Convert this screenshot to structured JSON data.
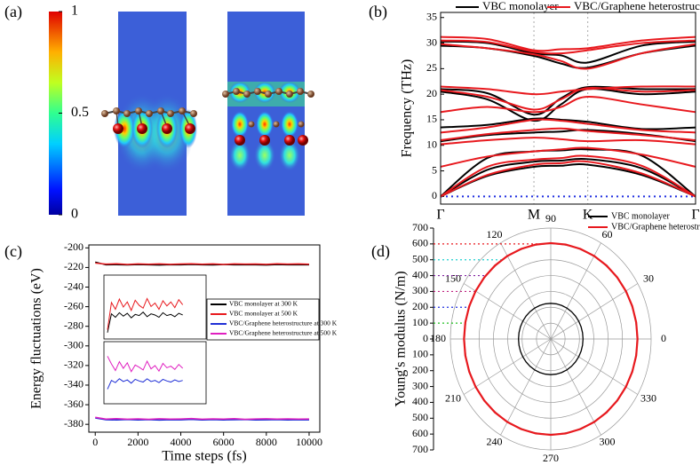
{
  "chart_data": [
    {
      "type": "colorbar",
      "label": "(a)",
      "clim": [
        0,
        1
      ],
      "cticks": [
        0,
        0.5,
        1
      ]
    },
    {
      "type": "bands",
      "label": "(b)",
      "ylabel": "Frequency (THz)",
      "xlim": [
        0,
        2.732
      ],
      "xticks": [
        {
          "value": 0,
          "label": "Γ"
        },
        {
          "value": 1,
          "label": "M"
        },
        {
          "value": 1.577,
          "label": "K"
        },
        {
          "value": 2.732,
          "label": "Γ"
        }
      ],
      "ylim": [
        -1.5,
        36
      ],
      "yticks": [
        0,
        5,
        10,
        15,
        20,
        25,
        30,
        35
      ],
      "x": [
        0,
        0.5,
        1,
        1.289,
        1.577,
        2.155,
        2.732
      ],
      "series": [
        {
          "name": "VBC monolayer",
          "color": "#000000",
          "bands": [
            [
              0,
              4,
              5.8,
              6,
              6.2,
              4.2,
              0
            ],
            [
              0,
              5.2,
              6.8,
              7,
              7.3,
              5.5,
              0
            ],
            [
              0,
              7.5,
              8.8,
              9,
              9.2,
              8,
              0
            ],
            [
              10.8,
              12,
              12.5,
              12.7,
              13,
              12.2,
              10.8
            ],
            [
              13.5,
              14,
              15.2,
              15,
              14.6,
              13.2,
              13.5
            ],
            [
              20.5,
              19,
              14.8,
              18,
              21,
              20,
              20.5
            ],
            [
              21,
              20.2,
              16,
              19.2,
              21.4,
              21,
              21
            ],
            [
              29.5,
              29,
              27.5,
              26,
              25.2,
              28,
              29.5
            ],
            [
              30.3,
              30,
              28,
              27.6,
              26.2,
              29.5,
              30.3
            ]
          ]
        },
        {
          "name": "VBC/Graphene heterostructure",
          "color": "#e8191e",
          "bands": [
            [
              0,
              4.2,
              6.2,
              6.5,
              6.8,
              4.5,
              0
            ],
            [
              0,
              5.8,
              7.2,
              7.5,
              7.9,
              6,
              0
            ],
            [
              5.8,
              7.8,
              8.8,
              9.2,
              9.5,
              8.2,
              5.8
            ],
            [
              10.2,
              11,
              11.5,
              11.2,
              10.8,
              11,
              10.2
            ],
            [
              11,
              12.2,
              13,
              13.3,
              12.8,
              12,
              11
            ],
            [
              12.5,
              13.5,
              15,
              14.8,
              14.2,
              13,
              12.5
            ],
            [
              16.5,
              17.5,
              16.5,
              17.5,
              19.5,
              18,
              16.5
            ],
            [
              20.8,
              19.5,
              17,
              19,
              21.2,
              20.5,
              20.8
            ],
            [
              21.5,
              21,
              20,
              20.5,
              21,
              21.5,
              21.5
            ],
            [
              29.8,
              29,
              27.8,
              26.5,
              25,
              28,
              29.8
            ],
            [
              30.5,
              30.2,
              28.3,
              28,
              28.6,
              30,
              30.5
            ],
            [
              31.2,
              30.8,
              28.6,
              28.8,
              29,
              30.5,
              31.2
            ]
          ]
        }
      ]
    },
    {
      "type": "line",
      "label": "(c)",
      "xlabel": "Time steps (fs)",
      "ylabel": "Energy fluctuations (eV)",
      "xlim": [
        -300,
        10500
      ],
      "xticks": [
        0,
        2000,
        4000,
        6000,
        8000,
        10000
      ],
      "ylim": [
        -388,
        -197
      ],
      "yticks": [
        -380,
        -360,
        -340,
        -320,
        -300,
        -280,
        -260,
        -240,
        -220,
        -200
      ],
      "x": [
        0,
        500,
        1000,
        1500,
        2000,
        2500,
        3000,
        3500,
        4000,
        4500,
        5000,
        5500,
        6000,
        6500,
        7000,
        7500,
        8000,
        8500,
        9000,
        9500,
        10000
      ],
      "series": [
        {
          "name": "VBC monolayer at 300 K",
          "color": "#000000",
          "values": [
            -214.5,
            -217.3,
            -217.1,
            -217.4,
            -217.0,
            -217.2,
            -217.5,
            -217.1,
            -217.3,
            -216.9,
            -217.2,
            -217.4,
            -217.0,
            -217.3,
            -217.1,
            -217.2,
            -217.5,
            -217.0,
            -217.3,
            -217.1,
            -217.2
          ]
        },
        {
          "name": "VBC monolayer at 500 K",
          "color": "#e8191e",
          "values": [
            -215.5,
            -216.6,
            -216.2,
            -216.9,
            -216.4,
            -216.7,
            -216.3,
            -216.8,
            -216.5,
            -216.2,
            -216.7,
            -216.4,
            -216.9,
            -216.3,
            -216.6,
            -216.5,
            -216.8,
            -216.2,
            -216.6,
            -216.4,
            -216.7
          ]
        },
        {
          "name": "VBC/Graphene heterostructure at 300 K",
          "color": "#1f2fd6",
          "values": [
            -373.5,
            -375.3,
            -375.6,
            -375.1,
            -375.5,
            -375.2,
            -375.7,
            -375.3,
            -375.4,
            -375.0,
            -375.6,
            -375.2,
            -375.5,
            -375.3,
            -375.1,
            -375.6,
            -375.4,
            -375.2,
            -375.5,
            -375.3,
            -375.4
          ]
        },
        {
          "name": "VBC/Graphene heterostructure at 500 K",
          "color": "#e020c0",
          "values": [
            -372.8,
            -374.6,
            -374.2,
            -374.8,
            -374.4,
            -374.9,
            -374.3,
            -374.7,
            -374.5,
            -374.1,
            -374.8,
            -374.4,
            -374.6,
            -374.2,
            -374.9,
            -374.5,
            -374.3,
            -374.7,
            -374.4,
            -374.6,
            -374.5
          ]
        }
      ],
      "insets": [
        {
          "xlim": [
            0,
            6000
          ],
          "ylim": [
            0,
            10
          ],
          "x": [
            0,
            250,
            500,
            750,
            1000,
            1250,
            1500,
            1750,
            2000,
            2250,
            2500,
            2750,
            3000,
            3250,
            3500,
            3750,
            4000,
            4250,
            4500,
            4750
          ],
          "series": [
            {
              "color": "#000000",
              "values": [
                0.5,
                3.8,
                3.2,
                4.0,
                3.4,
                3.9,
                3.1,
                3.7,
                3.5,
                4.1,
                3.3,
                3.8,
                3.6,
                3.2,
                4.0,
                3.5,
                3.7,
                3.3,
                3.9,
                3.6
              ]
            },
            {
              "color": "#e8191e",
              "values": [
                1.0,
                5.8,
                4.6,
                6.4,
                5.0,
                5.9,
                4.4,
                6.2,
                5.3,
                4.8,
                6.5,
                5.1,
                5.7,
                4.6,
                6.1,
                5.2,
                5.9,
                4.9,
                6.3,
                5.4
              ]
            }
          ]
        },
        {
          "xlim": [
            0,
            6000
          ],
          "ylim": [
            0,
            10
          ],
          "x": [
            0,
            250,
            500,
            750,
            1000,
            1250,
            1500,
            1750,
            2000,
            2250,
            2500,
            2750,
            3000,
            3250,
            3500,
            3750,
            4000,
            4250,
            4500,
            4750
          ],
          "series": [
            {
              "color": "#1f2fd6",
              "values": [
                2.0,
                3.6,
                3.2,
                3.9,
                3.4,
                3.7,
                3.1,
                3.8,
                3.5,
                3.3,
                3.9,
                3.4,
                3.6,
                3.2,
                3.8,
                3.5,
                3.3,
                3.7,
                3.4,
                3.6
              ]
            },
            {
              "color": "#e020c0",
              "values": [
                8.0,
                6.6,
                5.4,
                7.0,
                5.8,
                6.8,
                5.2,
                6.4,
                6.0,
                5.5,
                7.1,
                5.7,
                6.3,
                5.3,
                6.7,
                5.9,
                6.2,
                5.6,
                6.5,
                5.8
              ]
            }
          ]
        }
      ]
    },
    {
      "type": "polar",
      "label": "(d)",
      "ylabel": "Young's modulus (N/m)",
      "rlim": [
        0,
        700
      ],
      "rticks": [
        0,
        100,
        200,
        300,
        400,
        500,
        600,
        700
      ],
      "thetaticks": [
        0,
        30,
        60,
        90,
        120,
        150,
        180,
        210,
        240,
        270,
        300,
        330
      ],
      "theta": [
        0,
        10,
        20,
        30,
        40,
        50,
        60,
        70,
        80,
        90,
        100,
        110,
        120,
        130,
        140,
        150,
        160,
        170,
        180,
        190,
        200,
        210,
        220,
        230,
        240,
        250,
        260,
        270,
        280,
        290,
        300,
        310,
        320,
        330,
        340,
        350
      ],
      "series": [
        {
          "name": "VBC monolayer",
          "color": "#000000",
          "values": [
            225,
            225,
            225,
            225,
            225,
            225,
            225,
            225,
            225,
            225,
            225,
            225,
            225,
            225,
            225,
            225,
            225,
            225,
            225,
            225,
            225,
            225,
            225,
            225,
            225,
            225,
            225,
            225,
            225,
            225,
            225,
            225,
            225,
            225,
            225,
            225
          ]
        },
        {
          "name": "VBC/Graphene heterostructure",
          "color": "#e8191e",
          "values": [
            605,
            605,
            605,
            605,
            605,
            605,
            605,
            605,
            605,
            605,
            605,
            605,
            605,
            605,
            605,
            605,
            605,
            605,
            605,
            605,
            605,
            605,
            605,
            605,
            605,
            605,
            605,
            605,
            605,
            605,
            605,
            605,
            605,
            605,
            605,
            605
          ]
        }
      ]
    }
  ]
}
